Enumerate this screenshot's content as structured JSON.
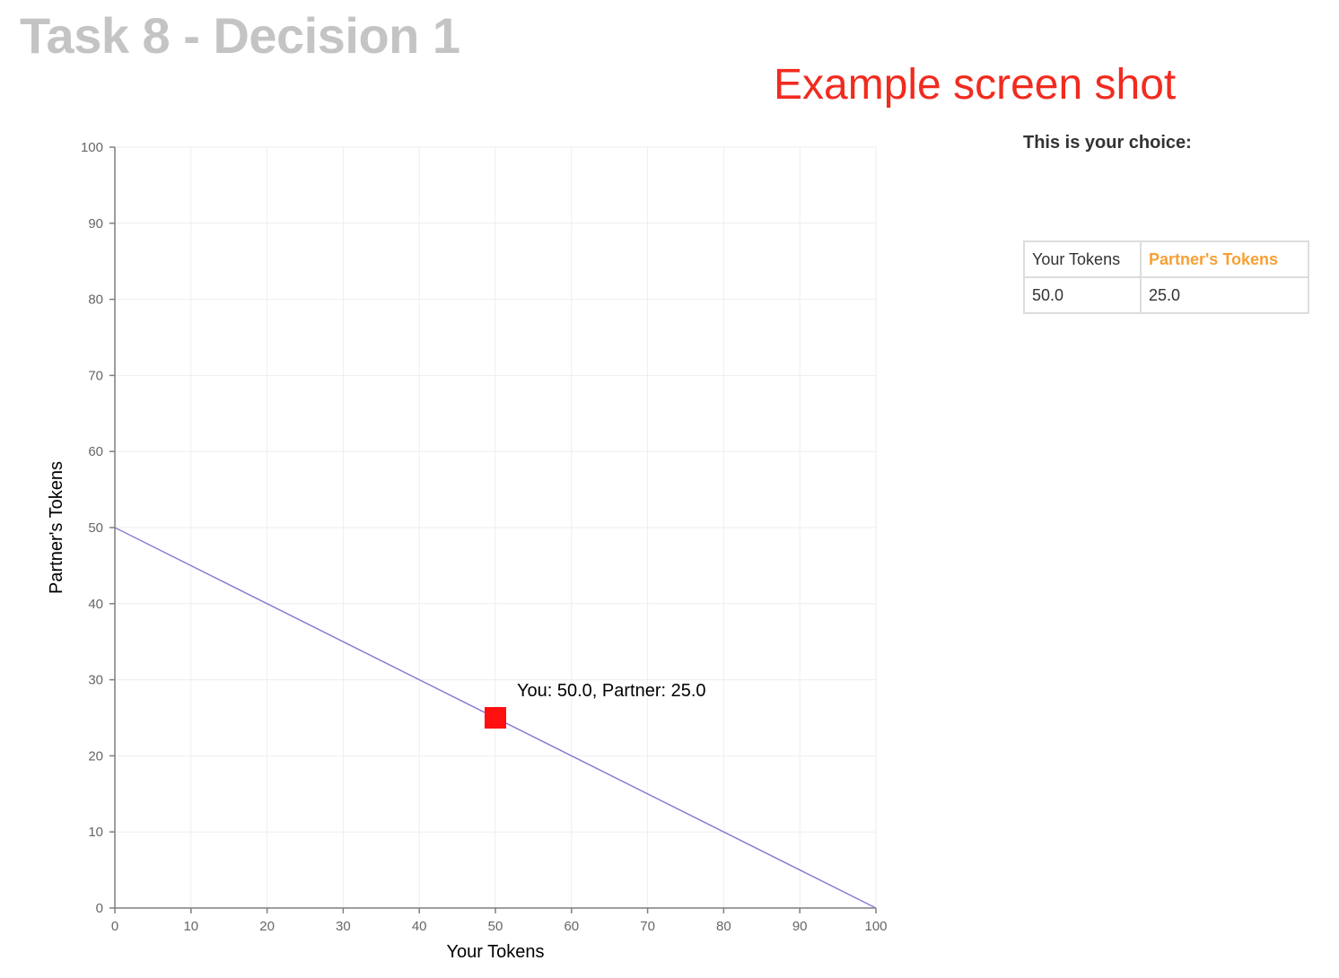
{
  "page": {
    "title": "Task 8 - Decision 1",
    "banner": "Example screen shot"
  },
  "sidebar": {
    "heading": "This is your choice:",
    "table": {
      "headers": [
        "Your Tokens",
        "Partner's Tokens"
      ],
      "rows": [
        [
          "50.0",
          "25.0"
        ]
      ]
    }
  },
  "colors": {
    "title": "#c4c4c4",
    "banner": "#f12b1f",
    "partner_header": "#f7a035",
    "budget_line": "#8a7fd6",
    "choice_marker": "#ff1010",
    "axis": "#7f7f7f",
    "grid": "#eeeeee"
  },
  "chart_data": {
    "type": "line",
    "xlabel": "Your Tokens",
    "ylabel": "Partner's Tokens",
    "xlim": [
      0,
      100
    ],
    "ylim": [
      0,
      100
    ],
    "xticks": [
      0,
      10,
      20,
      30,
      40,
      50,
      60,
      70,
      80,
      90,
      100
    ],
    "yticks": [
      0,
      10,
      20,
      30,
      40,
      50,
      60,
      70,
      80,
      90,
      100
    ],
    "grid": true,
    "series": [
      {
        "x": [
          0,
          100
        ],
        "y": [
          50,
          0
        ]
      }
    ],
    "choice_point": {
      "x": 50,
      "y": 25
    },
    "annotation": "You: 50.0, Partner: 25.0"
  }
}
